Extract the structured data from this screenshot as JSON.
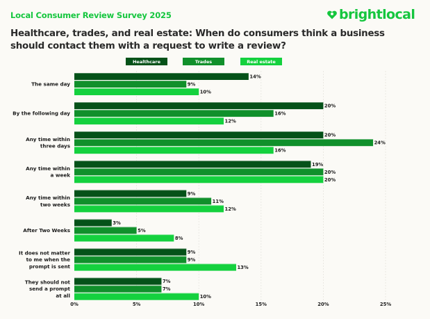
{
  "header": {
    "survey_title": "Local Consumer Review Survey 2025",
    "brand_name": "brightlocal",
    "brand_icon": "heart-pin-icon",
    "brand_color": "#15c63e"
  },
  "chart_data": {
    "type": "bar",
    "orientation": "horizontal",
    "title": "Healthcare, trades, and real estate: When do consumers think a business should contact them with a request to write a review?",
    "subtitle": "Local Consumer Review Survey 2025",
    "xlabel": "",
    "ylabel": "",
    "xlim": [
      0,
      25
    ],
    "x_ticks": [
      0,
      5,
      10,
      15,
      20,
      25
    ],
    "x_tick_labels": [
      "0%",
      "5%",
      "10%",
      "15%",
      "20%",
      "25%"
    ],
    "grid": true,
    "legend_position": "top-center",
    "categories": [
      "The same day",
      "By the following day",
      "Any time within three days",
      "Any time within a week",
      "Any time within two weeks",
      "After Two Weeks",
      "It does not matter to me when the prompt is sent",
      "They should not send a prompt at all"
    ],
    "category_label_lines": [
      [
        "The same day"
      ],
      [
        "By the following day"
      ],
      [
        "Any time within",
        "three days"
      ],
      [
        "Any time within",
        "a week"
      ],
      [
        "Any time within",
        "two weeks"
      ],
      [
        "After Two Weeks"
      ],
      [
        "It does not matter",
        "to me when the",
        "prompt is sent"
      ],
      [
        "They should not",
        "send a prompt",
        "at all"
      ]
    ],
    "series": [
      {
        "name": "Healthcare",
        "color": "#055219",
        "values": [
          14,
          20,
          20,
          19,
          9,
          3,
          9,
          7
        ]
      },
      {
        "name": "Trades",
        "color": "#10902b",
        "values": [
          9,
          16,
          24,
          20,
          11,
          5,
          9,
          7
        ]
      },
      {
        "name": "Real estate",
        "color": "#14d13e",
        "values": [
          10,
          12,
          16,
          20,
          12,
          8,
          13,
          10
        ]
      }
    ],
    "value_suffix": "%"
  }
}
